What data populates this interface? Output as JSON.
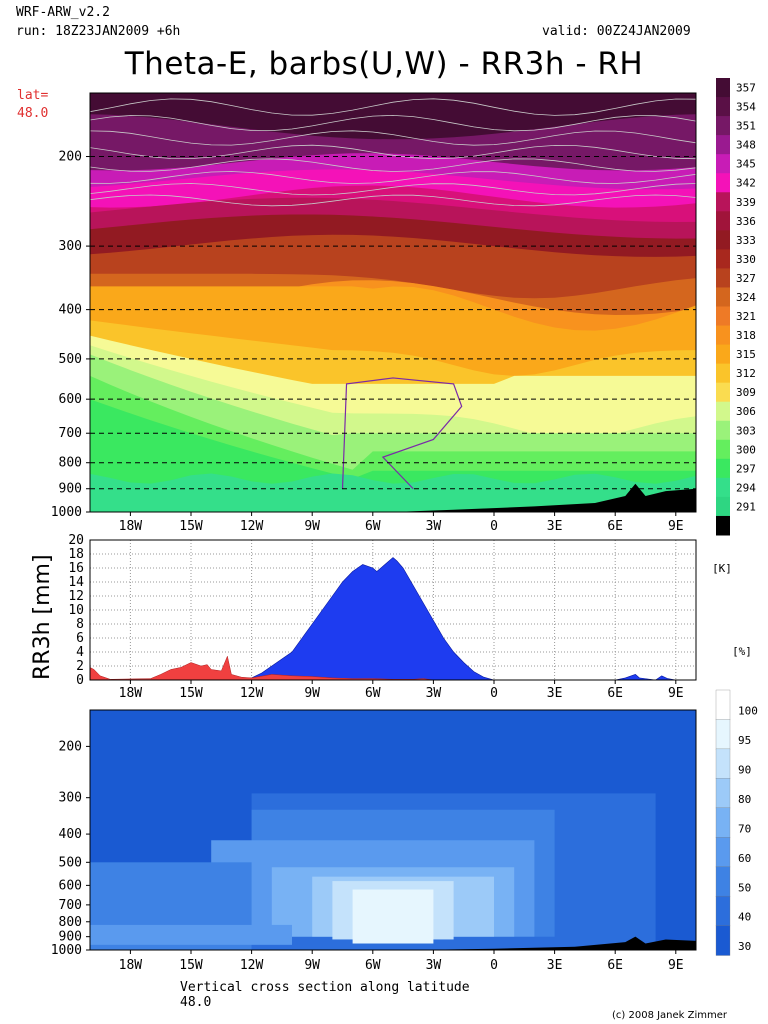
{
  "header": {
    "model": "WRF-ARW_v2.2",
    "run": "run: 18Z23JAN2009 +6h",
    "valid": "valid: 00Z24JAN2009",
    "title": "Theta-E, barbs(U,W) - RR3h - RH",
    "lat_label": "lat=",
    "lat_value": "48.0"
  },
  "footer": {
    "caption": "Vertical cross section along latitude",
    "caption_value": "48.0",
    "credit": "(c) 2008 Janek Zimmer"
  },
  "colors": {
    "theta_scale": [
      "#2ed682",
      "#34df8a",
      "#3ae860",
      "#64ee5e",
      "#9af27a",
      "#d2f88c",
      "#f6fa96",
      "#fadc50",
      "#fac42a",
      "#faa81a",
      "#f8921e",
      "#ee7a26",
      "#d4661e",
      "#b8421e",
      "#a8281e",
      "#921a22",
      "#a0143a",
      "#b8145a",
      "#d8107a",
      "#f412b8",
      "#c81cb6",
      "#9a1a90",
      "#761866",
      "#5a1046",
      "#440c34"
    ],
    "rr_fill": "#1e3cf0",
    "rr_fill_red": "#f04040",
    "rh_scale": [
      "#1a5ad2",
      "#2c6edc",
      "#3e82e4",
      "#5a9aee",
      "#78b2f4",
      "#9ccaf8",
      "#c4e2fb",
      "#e6f6fe",
      "#ffffff"
    ],
    "terrain": "#000000"
  },
  "chart_data": [
    {
      "type": "heatmap",
      "title": "Theta-E, barbs(U,W)",
      "x_ticks": [
        "18W",
        "15W",
        "12W",
        "9W",
        "6W",
        "3W",
        "0",
        "3E",
        "6E",
        "9E"
      ],
      "x_values": [
        -18,
        -15,
        -12,
        -9,
        -6,
        -3,
        0,
        3,
        6,
        9
      ],
      "xlim": [
        -20,
        10
      ],
      "y_ticks": [
        200,
        300,
        400,
        500,
        600,
        700,
        800,
        900,
        1000
      ],
      "y_units": "hPa",
      "colorbar_unit": "[K]",
      "colorbar_levels": [
        291,
        294,
        297,
        300,
        303,
        306,
        309,
        312,
        315,
        318,
        321,
        324,
        327,
        330,
        333,
        336,
        339,
        342,
        345,
        348,
        351,
        354,
        357
      ]
    },
    {
      "type": "area",
      "title": "RR3h",
      "ylabel": "RR3h [mm]",
      "ylim": [
        0,
        20
      ],
      "y_ticks": [
        0,
        2,
        4,
        6,
        8,
        10,
        12,
        14,
        16,
        18,
        20
      ],
      "x_ticks": [
        "18W",
        "15W",
        "12W",
        "9W",
        "6W",
        "3W",
        "0",
        "3E",
        "6E",
        "9E"
      ],
      "x_values": [
        -18,
        -15,
        -12,
        -9,
        -6,
        -3,
        0,
        3,
        6,
        9
      ],
      "xlim": [
        -20,
        10
      ],
      "series": [
        {
          "x": [
            -20,
            -19.5,
            -19,
            -16.5,
            -16,
            -15.5,
            -15,
            -14.5,
            -14,
            -13.6,
            -13.2,
            -13,
            -12.5,
            -12,
            -11.5,
            -11,
            -10.5,
            -10,
            -9.5,
            -9,
            -8.5,
            -8,
            -7.5,
            -7,
            -6.5,
            -6,
            -5.8,
            -5.4,
            -5,
            -4.8,
            -4.5,
            -4,
            -3.5,
            -3,
            -2.5,
            -2,
            -1.5,
            -1,
            -0.5,
            0,
            3,
            6,
            6.5,
            7,
            7.2,
            8,
            8.3,
            8.6,
            9,
            10
          ],
          "values": [
            0,
            0,
            0,
            0,
            0,
            0,
            0,
            0,
            0,
            0,
            0,
            0,
            0,
            0.3,
            1,
            2,
            3,
            4,
            6,
            8,
            10,
            12,
            14,
            15.5,
            16.5,
            16,
            15.5,
            16.5,
            17.5,
            17,
            16,
            13.5,
            11,
            8.5,
            6,
            4,
            2.5,
            1.2,
            0.4,
            0,
            0,
            0,
            0.3,
            0.8,
            0.3,
            0,
            0.6,
            0.2,
            0,
            0
          ]
        },
        {
          "x": [
            -20,
            -19.8,
            -19.5,
            -19,
            -17,
            -16.5,
            -16,
            -15.5,
            -15,
            -14.5,
            -14.2,
            -14,
            -13.5,
            -13.2,
            -13,
            -12.5,
            -12,
            -11,
            -10,
            -9,
            -8,
            -7,
            -6,
            -5,
            -4,
            -3.5,
            -3,
            -20
          ],
          "values": [
            1.8,
            1.5,
            0.6,
            0.1,
            0.2,
            0.8,
            1.5,
            1.8,
            2.5,
            2,
            2.2,
            1.5,
            1.3,
            3.4,
            0.8,
            0.4,
            0.3,
            0.8,
            0.6,
            0.5,
            0.3,
            0.2,
            0.2,
            0.1,
            0.1,
            0.2,
            0,
            0
          ]
        }
      ]
    },
    {
      "type": "heatmap",
      "title": "RH",
      "x_ticks": [
        "18W",
        "15W",
        "12W",
        "9W",
        "6W",
        "3W",
        "0",
        "3E",
        "6E",
        "9E"
      ],
      "x_values": [
        -18,
        -15,
        -12,
        -9,
        -6,
        -3,
        0,
        3,
        6,
        9
      ],
      "xlim": [
        -20,
        10
      ],
      "y_ticks": [
        200,
        300,
        400,
        500,
        600,
        700,
        800,
        900,
        1000
      ],
      "y_units": "hPa",
      "colorbar_unit": "[%]",
      "colorbar_levels": [
        30,
        40,
        50,
        60,
        70,
        80,
        90,
        95,
        100
      ]
    }
  ]
}
